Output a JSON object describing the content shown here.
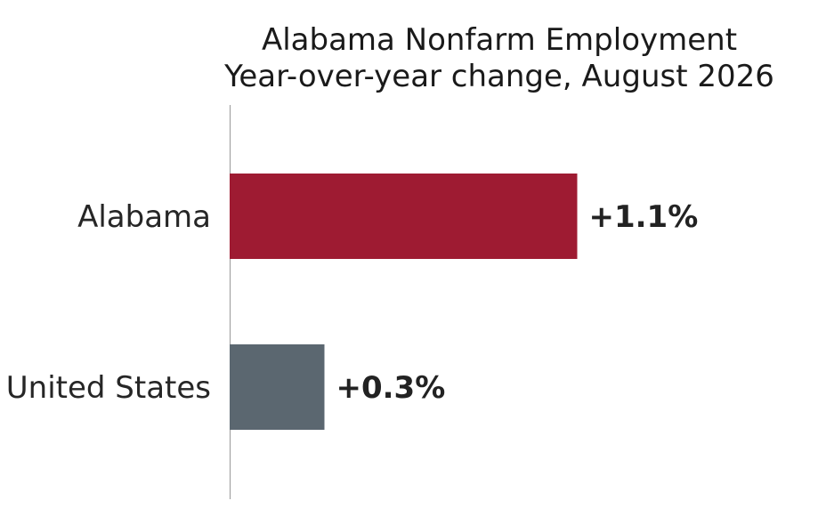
{
  "chart_data": {
    "type": "bar",
    "orientation": "horizontal",
    "title": "Alabama Nonfarm Employment",
    "subtitle": "Year-over-year change, August 2026",
    "categories": [
      "Alabama",
      "United States"
    ],
    "values": [
      1.1,
      0.3
    ],
    "value_labels": [
      "+1.1%",
      "+0.3%"
    ],
    "colors": [
      "#9e1b32",
      "#5b6770"
    ],
    "xlim": [
      0,
      1.85
    ],
    "grid": false,
    "legend": "none"
  }
}
